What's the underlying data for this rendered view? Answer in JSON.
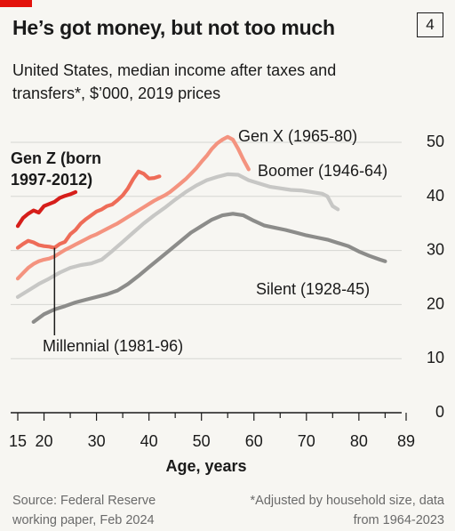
{
  "header": {
    "chart_number": "4",
    "title": "He’s got money, but not too much",
    "subtitle": "United States, median income after taxes and transfers*, $’000, 2019 prices"
  },
  "footer": {
    "source": "Source: Federal Reserve working paper, Feb 2024",
    "note": "*Adjusted by household size, data from 1964-2023"
  },
  "colors": {
    "gen_z": "#d61e1a",
    "millennial": "#ee6c58",
    "gen_x": "#f4937f",
    "boomer": "#c7c7c5",
    "silent": "#8c8c8a",
    "brand": "#e3120b"
  },
  "chart_data": {
    "type": "line",
    "title": "He’s got money, but not too much",
    "xlabel": "Age, years",
    "ylabel": "",
    "xlim": [
      13,
      90
    ],
    "ylim": [
      0,
      52
    ],
    "xticks": [
      15,
      20,
      30,
      40,
      50,
      60,
      70,
      80,
      89
    ],
    "xtick_labels": [
      "15",
      "20",
      "30",
      "40",
      "50",
      "60",
      "70",
      "80",
      "89"
    ],
    "yticks": [
      0,
      10,
      20,
      30,
      40,
      50
    ],
    "ytick_labels": [
      "0",
      "10",
      "20",
      "30",
      "40",
      "50"
    ],
    "grid": "horizontal",
    "series": [
      {
        "name": "Gen Z (born 1997-2012)",
        "label_lines": [
          "Gen Z (born",
          "1997-2012)"
        ],
        "color": "#d61e1a",
        "label_bold": true,
        "x": [
          15,
          16,
          17,
          18,
          19,
          20,
          21,
          22,
          23,
          24,
          25,
          26
        ],
        "y": [
          34.5,
          36,
          36.8,
          37.4,
          37,
          38.2,
          38.6,
          39,
          39.7,
          40.1,
          40.4,
          40.8
        ]
      },
      {
        "name": "Millennial (1981-96)",
        "label_lines": [
          "Millennial (1981-96)"
        ],
        "color": "#ee6c58",
        "label_bold": false,
        "x": [
          15,
          16,
          17,
          18,
          19,
          20,
          21,
          22,
          23,
          24,
          25,
          26,
          27,
          28,
          29,
          30,
          31,
          32,
          33,
          34,
          35,
          36,
          37,
          38,
          39,
          40,
          41,
          42
        ],
        "y": [
          30.5,
          31.2,
          31.8,
          31.5,
          31,
          30.8,
          30.7,
          30.5,
          31.2,
          31.6,
          33,
          33.8,
          35,
          35.8,
          36.5,
          37.2,
          37.6,
          38.2,
          38.5,
          39.3,
          40.2,
          41.5,
          43.2,
          44.6,
          44.2,
          43.3,
          43.4,
          43.7
        ]
      },
      {
        "name": "Gen X (1965-80)",
        "label_lines": [
          "Gen X (1965-80)"
        ],
        "color": "#f4937f",
        "label_bold": false,
        "x": [
          15,
          16,
          17,
          18,
          19,
          20,
          21,
          22,
          23,
          24,
          25,
          26,
          27,
          28,
          29,
          30,
          31,
          32,
          33,
          34,
          35,
          36,
          37,
          38,
          39,
          40,
          41,
          42,
          43,
          44,
          45,
          46,
          47,
          48,
          49,
          50,
          51,
          52,
          53,
          54,
          55,
          56,
          57,
          58,
          59
        ],
        "y": [
          24.8,
          25.8,
          26.8,
          27.5,
          28,
          28.3,
          28.5,
          28.9,
          29.5,
          30.1,
          30.6,
          31.1,
          31.6,
          32.1,
          32.6,
          33,
          33.5,
          34,
          34.5,
          35,
          35.6,
          36.2,
          36.8,
          37.4,
          38,
          38.6,
          39.2,
          39.7,
          40.2,
          40.8,
          41.6,
          42.4,
          43.2,
          44.2,
          45.2,
          46.4,
          47.5,
          48.8,
          49.8,
          50.5,
          51,
          50.5,
          48.8,
          46.8,
          45
        ]
      },
      {
        "name": "Boomer (1946-64)",
        "label_lines": [
          "Boomer (1946-64)"
        ],
        "color": "#c7c7c5",
        "label_bold": false,
        "x": [
          15,
          17,
          19,
          21,
          23,
          25,
          27,
          29,
          31,
          33,
          35,
          37,
          39,
          41,
          43,
          45,
          47,
          49,
          51,
          53,
          55,
          57,
          59,
          61,
          63,
          65,
          67,
          69,
          71,
          73,
          74,
          75,
          76
        ],
        "y": [
          21.4,
          22.6,
          23.8,
          24.8,
          25.9,
          26.8,
          27.3,
          27.6,
          28.3,
          29.9,
          31.6,
          33.3,
          35,
          36.5,
          37.9,
          39.4,
          40.8,
          42,
          43,
          43.6,
          44.1,
          44,
          43,
          42.4,
          41.8,
          41.5,
          41.2,
          41.1,
          40.8,
          40.5,
          40,
          38.2,
          37.6
        ]
      },
      {
        "name": "Silent (1928-45)",
        "label_lines": [
          "Silent (1928-45)"
        ],
        "color": "#8c8c8a",
        "label_bold": false,
        "x": [
          18,
          20,
          22,
          24,
          26,
          28,
          30,
          32,
          34,
          36,
          38,
          40,
          42,
          44,
          46,
          48,
          50,
          52,
          54,
          56,
          58,
          60,
          62,
          64,
          66,
          68,
          70,
          72,
          74,
          76,
          78,
          80,
          82,
          84,
          85
        ],
        "y": [
          16.8,
          18.2,
          19.1,
          19.7,
          20.4,
          20.9,
          21.4,
          21.9,
          22.6,
          23.8,
          25.3,
          26.9,
          28.5,
          30.1,
          31.7,
          33.3,
          34.5,
          35.7,
          36.5,
          36.8,
          36.5,
          35.5,
          34.6,
          34.2,
          33.8,
          33.3,
          32.8,
          32.4,
          32,
          31.4,
          30.8,
          29.8,
          29,
          28.3,
          28
        ]
      }
    ],
    "annotations": [
      {
        "text": "",
        "from": [
          22,
          30.5
        ],
        "to": [
          22,
          16
        ]
      }
    ]
  }
}
